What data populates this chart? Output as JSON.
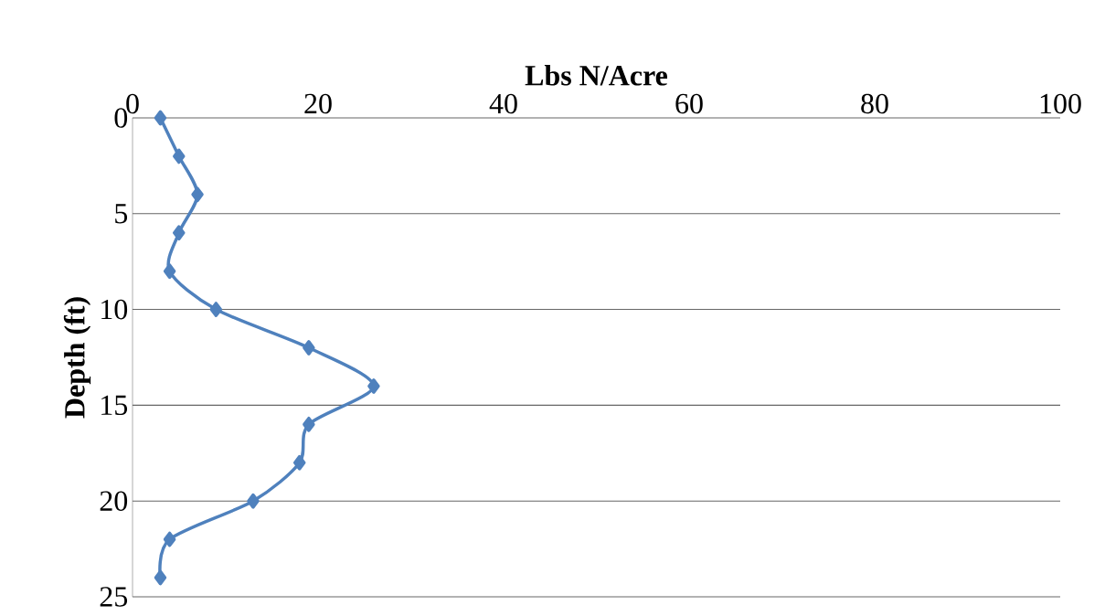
{
  "chart_data": {
    "type": "line",
    "xlabel": "Lbs N/Acre",
    "ylabel": "Depth (ft)",
    "x": [
      3,
      5,
      7,
      5,
      4,
      9,
      19,
      26,
      19,
      18,
      13,
      4,
      3
    ],
    "series": [
      {
        "color": "#4f81bd",
        "values": [
          0,
          2,
          4,
          6,
          8,
          10,
          12,
          14,
          16,
          18,
          20,
          22,
          24
        ]
      }
    ],
    "xlim": [
      0,
      100
    ],
    "xticks": [
      0,
      20,
      40,
      60,
      80,
      100
    ],
    "ylim": [
      25,
      0
    ],
    "yticks": [
      0,
      5,
      10,
      15,
      20,
      25
    ],
    "grid": "y",
    "marker": "diamond",
    "line_style": "solid"
  }
}
